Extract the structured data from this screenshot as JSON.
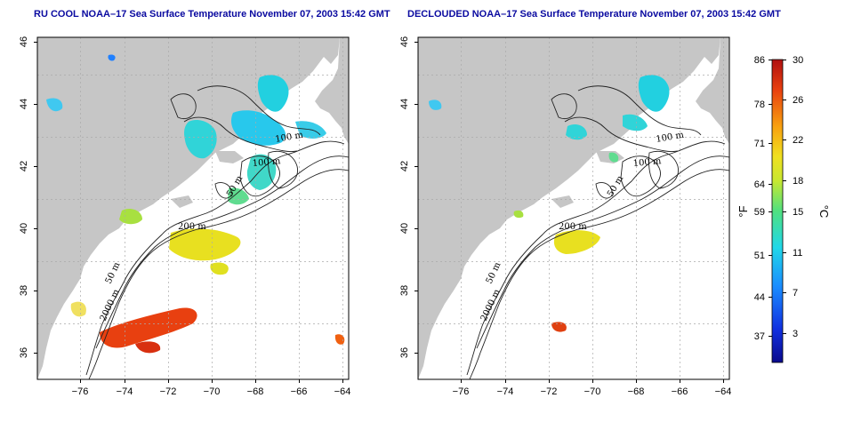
{
  "panels": [
    {
      "id": "left",
      "title": "RU COOL NOAA–17 Sea Surface Temperature November 07, 2003 15:42 GMT"
    },
    {
      "id": "right",
      "title": "DECLOUDED NOAA–17 Sea Surface Temperature November 07, 2003 15:42 GMT"
    }
  ],
  "axes": {
    "lon_ticks": [
      "−76",
      "−74",
      "−72",
      "−70",
      "−68",
      "−66",
      "−64"
    ],
    "lat_ticks": [
      "46",
      "44",
      "42",
      "40",
      "38",
      "36"
    ]
  },
  "contour_labels": {
    "c100a": "100 m",
    "c100b": "100 m",
    "c50a": "50 m",
    "c200": "200 m",
    "c50b": "50 m",
    "c2000": "2000 m"
  },
  "colorbar": {
    "fahrenheit_ticks": [
      "86",
      "78",
      "71",
      "64",
      "59",
      "51",
      "44",
      "37"
    ],
    "celsius_ticks": [
      "30",
      "26",
      "22",
      "18",
      "15",
      "11",
      "7",
      "3"
    ],
    "fahrenheit_unit": "°F",
    "celsius_unit": "°C",
    "colors": [
      "#0a0a8c",
      "#1030e0",
      "#1a8cff",
      "#20d8e8",
      "#50e080",
      "#c8e830",
      "#f0e020",
      "#f8a010",
      "#e84010",
      "#b01010"
    ]
  },
  "colors": {
    "land": "#c6c6c6",
    "water": "#ffffff",
    "title": "#0a0aa0"
  }
}
